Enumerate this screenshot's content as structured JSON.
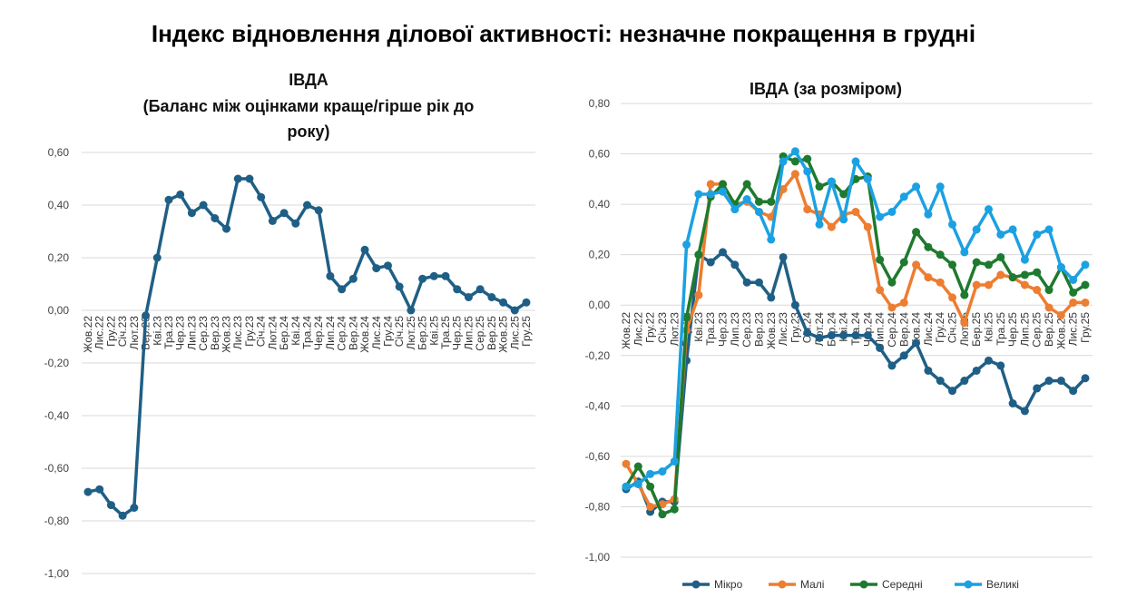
{
  "title": "Індекс відновлення ділової активності: незначне покращення в грудні",
  "chart_data": [
    {
      "type": "line",
      "title": [
        "ІВДА",
        "(Баланс між оцінками краще/гірше рік до",
        "року)"
      ],
      "ylim": [
        -1.0,
        0.6
      ],
      "yticks": [
        "0,60",
        "0,40",
        "0,20",
        "0,00",
        "-0,20",
        "-0,40",
        "-0,60",
        "-0,80",
        "-1,00"
      ],
      "ytick_values": [
        0.6,
        0.4,
        0.2,
        0,
        -0.2,
        -0.4,
        -0.6,
        -0.8,
        -1.0
      ],
      "categories": [
        "Жов.22",
        "Лис.22",
        "Гру.22",
        "Січ.23",
        "Лют.23",
        "Бер.23",
        "Кві.23",
        "Тра.23",
        "Чер.23",
        "Лип.23",
        "Сер.23",
        "Вер.23",
        "Жов.23",
        "Лис.23",
        "Гру.23",
        "Січ.24",
        "Лют.24",
        "Бер.24",
        "Кві.24",
        "Тра.24",
        "Чер.24",
        "Лип.24",
        "Сер.24",
        "Вер.24",
        "Жов.24",
        "Лис.24",
        "Гру.24",
        "Січ.25",
        "Лют.25",
        "Бер.25",
        "Кві.25",
        "Тра.25",
        "Чер.25",
        "Лип.25",
        "Сер.25",
        "Вер.25",
        "Жов.25",
        "Лис.25",
        "Гру.25"
      ],
      "series": [
        {
          "name": "ІВДА",
          "color": "#1f5f86",
          "values": [
            -0.69,
            -0.68,
            -0.74,
            -0.78,
            -0.75,
            -0.02,
            0.2,
            0.42,
            0.44,
            0.37,
            0.4,
            0.35,
            0.31,
            0.5,
            0.5,
            0.43,
            0.34,
            0.37,
            0.33,
            0.4,
            0.38,
            0.13,
            0.08,
            0.12,
            0.23,
            0.16,
            0.17,
            0.09,
            0.0,
            0.12,
            0.13,
            0.13,
            0.08,
            0.05,
            0.08,
            0.05,
            0.03,
            0.0,
            0.03
          ]
        }
      ]
    },
    {
      "type": "line",
      "title": [
        "ІВДА (за розміром)"
      ],
      "ylim": [
        -1.0,
        0.8
      ],
      "yticks": [
        "0,80",
        "0,60",
        "0,40",
        "0,20",
        "0,00",
        "-0,20",
        "-0,40",
        "-0,60",
        "-0,80",
        "-1,00"
      ],
      "ytick_values": [
        0.8,
        0.6,
        0.4,
        0.2,
        0,
        -0.2,
        -0.4,
        -0.6,
        -0.8,
        -1.0
      ],
      "categories": [
        "Жов.22",
        "Лис.22",
        "Гру.22",
        "Січ.23",
        "Лют.23",
        "Бер.23",
        "Кві.23",
        "Тра.23",
        "Чер.23",
        "Лип.23",
        "Сер.23",
        "Вер.23",
        "Жов.23",
        "Лис.23",
        "Гру.23",
        "Січ.24",
        "Лют.24",
        "Бер.24",
        "Кві.24",
        "Тра.24",
        "Чер.24",
        "Лип.24",
        "Сер.24",
        "Вер.24",
        "Жов.24",
        "Лис.24",
        "Гру.24",
        "Січ.25",
        "Лют.25",
        "Бер.25",
        "Кві.25",
        "Тра.25",
        "Чер.25",
        "Лип.25",
        "Сер.25",
        "Вер.25",
        "Жов.25",
        "Лис.25",
        "Гру.25"
      ],
      "legend": "bottom",
      "series": [
        {
          "name": "Мікро",
          "color": "#1f5f86",
          "values": [
            -0.73,
            -0.7,
            -0.82,
            -0.78,
            -0.78,
            -0.22,
            0.2,
            0.17,
            0.21,
            0.16,
            0.09,
            0.09,
            0.03,
            0.19,
            0.0,
            -0.11,
            -0.13,
            -0.12,
            -0.12,
            -0.12,
            -0.12,
            -0.17,
            -0.24,
            -0.2,
            -0.15,
            -0.26,
            -0.3,
            -0.34,
            -0.3,
            -0.26,
            -0.22,
            -0.24,
            -0.39,
            -0.42,
            -0.33,
            -0.3,
            -0.3,
            -0.34,
            -0.29
          ]
        },
        {
          "name": "Малі",
          "color": "#ed7d31",
          "values": [
            -0.63,
            -0.71,
            -0.8,
            -0.79,
            -0.77,
            -0.1,
            0.04,
            0.48,
            0.48,
            0.4,
            0.41,
            0.37,
            0.35,
            0.46,
            0.52,
            0.38,
            0.36,
            0.31,
            0.36,
            0.37,
            0.31,
            0.06,
            -0.01,
            0.01,
            0.16,
            0.11,
            0.09,
            0.03,
            -0.07,
            0.08,
            0.08,
            0.12,
            0.11,
            0.08,
            0.06,
            -0.01,
            -0.04,
            0.01,
            0.01
          ]
        },
        {
          "name": "Середні",
          "color": "#1e7a2e",
          "values": [
            -0.72,
            -0.64,
            -0.72,
            -0.83,
            -0.81,
            -0.05,
            0.2,
            0.43,
            0.48,
            0.4,
            0.48,
            0.41,
            0.41,
            0.59,
            0.57,
            0.58,
            0.47,
            0.49,
            0.44,
            0.5,
            0.51,
            0.18,
            0.09,
            0.17,
            0.29,
            0.23,
            0.2,
            0.16,
            0.04,
            0.17,
            0.16,
            0.19,
            0.11,
            0.12,
            0.13,
            0.06,
            0.15,
            0.05,
            0.08
          ]
        },
        {
          "name": "Великі",
          "color": "#1ba1e2",
          "values": [
            -0.72,
            -0.71,
            -0.67,
            -0.66,
            -0.62,
            0.24,
            0.44,
            0.44,
            0.45,
            0.38,
            0.42,
            0.37,
            0.26,
            0.57,
            0.61,
            0.53,
            0.32,
            0.49,
            0.34,
            0.57,
            0.5,
            0.35,
            0.37,
            0.43,
            0.47,
            0.36,
            0.47,
            0.32,
            0.21,
            0.3,
            0.38,
            0.28,
            0.3,
            0.18,
            0.28,
            0.3,
            0.15,
            0.1,
            0.16
          ]
        }
      ]
    }
  ]
}
